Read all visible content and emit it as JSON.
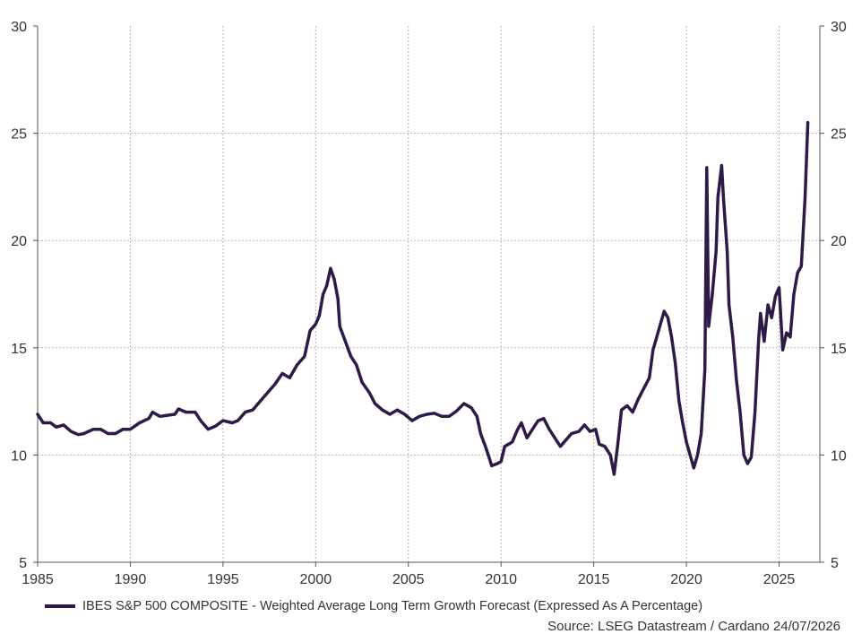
{
  "chart_data": {
    "type": "line",
    "title": "",
    "xlabel": "",
    "ylabel": "",
    "xlim": [
      1985,
      2027.2
    ],
    "ylim": [
      5,
      30
    ],
    "x_ticks": [
      "1985",
      "1990",
      "1995",
      "2000",
      "2005",
      "2010",
      "2015",
      "2020",
      "2025"
    ],
    "y_ticks": [
      "5",
      "10",
      "15",
      "20",
      "25",
      "30"
    ],
    "grid": true,
    "legend_placement": "bottom-left",
    "series": [
      {
        "name": "IBES S&P 500 COMPOSITE - Weighted Average Long Term Growth Forecast (Expressed As A Percentage)",
        "color": "#2e1a47",
        "points": [
          [
            1985.0,
            11.9
          ],
          [
            1985.3,
            11.5
          ],
          [
            1985.7,
            11.5
          ],
          [
            1986.0,
            11.3
          ],
          [
            1986.4,
            11.4
          ],
          [
            1986.8,
            11.1
          ],
          [
            1987.2,
            10.95
          ],
          [
            1987.5,
            11.0
          ],
          [
            1988.0,
            11.2
          ],
          [
            1988.4,
            11.2
          ],
          [
            1988.8,
            11.0
          ],
          [
            1989.2,
            11.0
          ],
          [
            1989.6,
            11.2
          ],
          [
            1990.0,
            11.2
          ],
          [
            1990.5,
            11.5
          ],
          [
            1991.0,
            11.7
          ],
          [
            1991.2,
            12.0
          ],
          [
            1991.6,
            11.8
          ],
          [
            1992.0,
            11.85
          ],
          [
            1992.4,
            11.9
          ],
          [
            1992.6,
            12.15
          ],
          [
            1993.0,
            12.0
          ],
          [
            1993.5,
            12.0
          ],
          [
            1993.8,
            11.6
          ],
          [
            1994.2,
            11.2
          ],
          [
            1994.6,
            11.35
          ],
          [
            1995.0,
            11.6
          ],
          [
            1995.5,
            11.5
          ],
          [
            1995.8,
            11.6
          ],
          [
            1996.2,
            12.0
          ],
          [
            1996.6,
            12.1
          ],
          [
            1997.0,
            12.5
          ],
          [
            1997.5,
            13.0
          ],
          [
            1997.8,
            13.3
          ],
          [
            1998.2,
            13.8
          ],
          [
            1998.6,
            13.6
          ],
          [
            1999.0,
            14.2
          ],
          [
            1999.4,
            14.6
          ],
          [
            1999.7,
            15.8
          ],
          [
            2000.0,
            16.1
          ],
          [
            2000.2,
            16.5
          ],
          [
            2000.4,
            17.5
          ],
          [
            2000.6,
            17.9
          ],
          [
            2000.8,
            18.7
          ],
          [
            2001.0,
            18.2
          ],
          [
            2001.2,
            17.3
          ],
          [
            2001.3,
            16.0
          ],
          [
            2001.6,
            15.3
          ],
          [
            2001.9,
            14.6
          ],
          [
            2002.2,
            14.2
          ],
          [
            2002.5,
            13.4
          ],
          [
            2002.9,
            12.9
          ],
          [
            2003.2,
            12.4
          ],
          [
            2003.6,
            12.1
          ],
          [
            2004.0,
            11.9
          ],
          [
            2004.4,
            12.1
          ],
          [
            2004.8,
            11.9
          ],
          [
            2005.2,
            11.6
          ],
          [
            2005.6,
            11.8
          ],
          [
            2006.0,
            11.9
          ],
          [
            2006.4,
            11.95
          ],
          [
            2006.8,
            11.8
          ],
          [
            2007.2,
            11.8
          ],
          [
            2007.6,
            12.05
          ],
          [
            2008.0,
            12.4
          ],
          [
            2008.4,
            12.2
          ],
          [
            2008.7,
            11.8
          ],
          [
            2008.9,
            11.0
          ],
          [
            2009.2,
            10.3
          ],
          [
            2009.5,
            9.5
          ],
          [
            2009.8,
            9.6
          ],
          [
            2010.0,
            9.7
          ],
          [
            2010.2,
            10.4
          ],
          [
            2010.6,
            10.6
          ],
          [
            2010.9,
            11.2
          ],
          [
            2011.1,
            11.5
          ],
          [
            2011.4,
            10.8
          ],
          [
            2011.7,
            11.2
          ],
          [
            2012.0,
            11.6
          ],
          [
            2012.3,
            11.7
          ],
          [
            2012.6,
            11.2
          ],
          [
            2012.9,
            10.8
          ],
          [
            2013.2,
            10.4
          ],
          [
            2013.5,
            10.7
          ],
          [
            2013.8,
            11.0
          ],
          [
            2014.2,
            11.1
          ],
          [
            2014.5,
            11.4
          ],
          [
            2014.8,
            11.1
          ],
          [
            2015.1,
            11.2
          ],
          [
            2015.3,
            10.5
          ],
          [
            2015.6,
            10.4
          ],
          [
            2015.9,
            10.0
          ],
          [
            2016.1,
            9.1
          ],
          [
            2016.3,
            10.5
          ],
          [
            2016.5,
            12.1
          ],
          [
            2016.8,
            12.3
          ],
          [
            2017.1,
            12.0
          ],
          [
            2017.4,
            12.6
          ],
          [
            2017.7,
            13.1
          ],
          [
            2018.0,
            13.6
          ],
          [
            2018.2,
            14.9
          ],
          [
            2018.5,
            15.8
          ],
          [
            2018.8,
            16.7
          ],
          [
            2019.0,
            16.4
          ],
          [
            2019.2,
            15.5
          ],
          [
            2019.4,
            14.3
          ],
          [
            2019.6,
            12.5
          ],
          [
            2019.8,
            11.5
          ],
          [
            2020.0,
            10.6
          ],
          [
            2020.2,
            10.0
          ],
          [
            2020.4,
            9.4
          ],
          [
            2020.6,
            10.0
          ],
          [
            2020.8,
            11.0
          ],
          [
            2021.0,
            14.0
          ],
          [
            2021.1,
            23.4
          ],
          [
            2021.2,
            16.0
          ],
          [
            2021.4,
            17.5
          ],
          [
            2021.6,
            19.5
          ],
          [
            2021.7,
            22.0
          ],
          [
            2021.9,
            23.5
          ],
          [
            2022.0,
            22.0
          ],
          [
            2022.2,
            19.5
          ],
          [
            2022.3,
            17.0
          ],
          [
            2022.5,
            15.5
          ],
          [
            2022.7,
            13.5
          ],
          [
            2022.9,
            12.0
          ],
          [
            2023.1,
            10.0
          ],
          [
            2023.3,
            9.6
          ],
          [
            2023.5,
            9.9
          ],
          [
            2023.7,
            12.0
          ],
          [
            2023.9,
            15.4
          ],
          [
            2024.0,
            16.6
          ],
          [
            2024.2,
            15.3
          ],
          [
            2024.4,
            17.0
          ],
          [
            2024.6,
            16.4
          ],
          [
            2024.8,
            17.4
          ],
          [
            2025.0,
            17.8
          ],
          [
            2025.2,
            14.9
          ],
          [
            2025.4,
            15.7
          ],
          [
            2025.6,
            15.5
          ],
          [
            2025.8,
            17.5
          ],
          [
            2026.0,
            18.5
          ],
          [
            2026.2,
            18.8
          ],
          [
            2026.4,
            22.0
          ],
          [
            2026.55,
            25.5
          ]
        ]
      }
    ]
  },
  "legend": {
    "label": "IBES S&P 500 COMPOSITE - Weighted Average Long Term Growth Forecast (Expressed As A Percentage)",
    "color": "#2e1a47"
  },
  "source": "Source: LSEG Datastream / Cardano  24/07/2026"
}
